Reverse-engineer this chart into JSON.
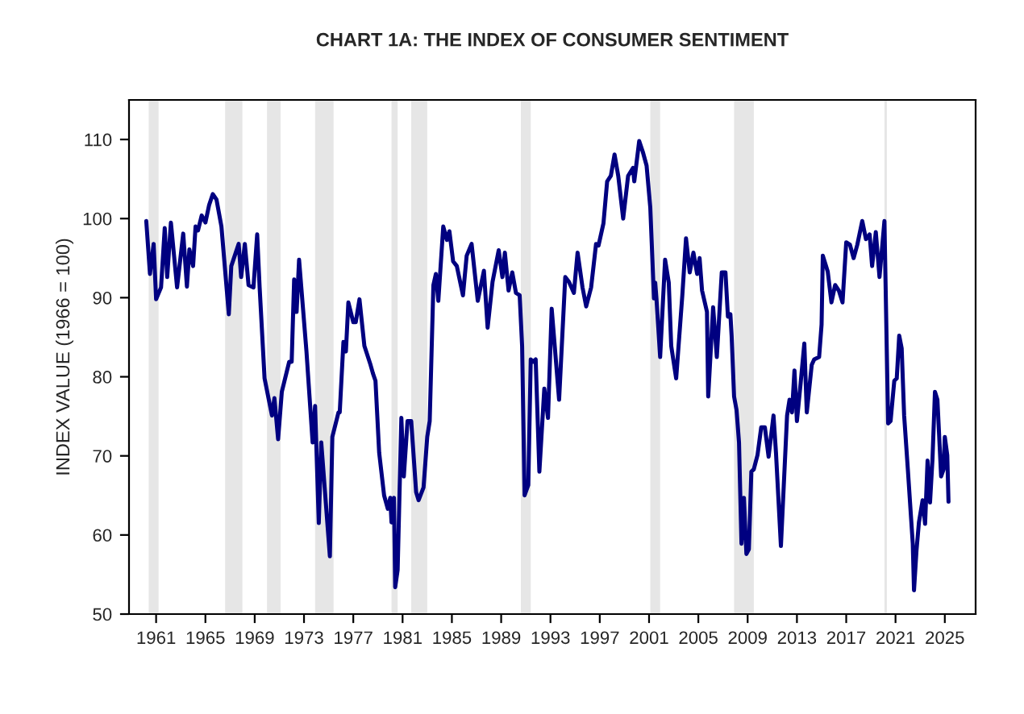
{
  "chart_data": {
    "type": "line",
    "title": "CHART 1A: THE INDEX OF CONSUMER SENTIMENT",
    "ylabel": "INDEX VALUE (1966 = 100)",
    "xlim": [
      1958.8,
      2027.5
    ],
    "xticks": [
      1961,
      1965,
      1969,
      1973,
      1977,
      1981,
      1985,
      1989,
      1993,
      1997,
      2001,
      2005,
      2009,
      2013,
      2017,
      2021,
      2025
    ],
    "ylim": [
      50,
      115
    ],
    "yticks": [
      50,
      60,
      70,
      80,
      90,
      100,
      110
    ],
    "grid": false,
    "marker": "none",
    "line_style": "solid",
    "bands": [
      {
        "axis": "x",
        "from": 1960.4,
        "to": 1961.2,
        "color": "#e6e6e6"
      },
      {
        "axis": "x",
        "from": 1966.6,
        "to": 1968.0,
        "color": "#e6e6e6"
      },
      {
        "axis": "x",
        "from": 1970.0,
        "to": 1971.1,
        "color": "#e6e6e6"
      },
      {
        "axis": "x",
        "from": 1973.9,
        "to": 1975.4,
        "color": "#e6e6e6"
      },
      {
        "axis": "x",
        "from": 1980.1,
        "to": 1980.6,
        "color": "#e6e6e6"
      },
      {
        "axis": "x",
        "from": 1981.7,
        "to": 1983.0,
        "color": "#e6e6e6"
      },
      {
        "axis": "x",
        "from": 1990.6,
        "to": 1991.4,
        "color": "#e6e6e6"
      },
      {
        "axis": "x",
        "from": 2001.1,
        "to": 2001.9,
        "color": "#e6e6e6"
      },
      {
        "axis": "x",
        "from": 2007.9,
        "to": 2009.5,
        "color": "#e6e6e6"
      },
      {
        "axis": "x",
        "from": 2020.1,
        "to": 2020.3,
        "color": "#e6e6e6"
      }
    ],
    "series": [
      {
        "color": "#000080",
        "x": [
          1960.2,
          1960.5,
          1960.8,
          1961.0,
          1961.4,
          1961.7,
          1961.9,
          1962.2,
          1962.7,
          1963.2,
          1963.5,
          1963.7,
          1964.0,
          1964.2,
          1964.4,
          1964.7,
          1965.0,
          1965.3,
          1965.6,
          1965.9,
          1966.3,
          1966.9,
          1967.1,
          1967.7,
          1967.9,
          1968.2,
          1968.5,
          1968.9,
          1969.2,
          1969.4,
          1969.8,
          1970.4,
          1970.6,
          1970.9,
          1971.2,
          1971.8,
          1972.0,
          1972.2,
          1972.4,
          1972.6,
          1973.2,
          1973.7,
          1973.9,
          1974.2,
          1974.4,
          1975.1,
          1975.3,
          1975.8,
          1975.9,
          1976.2,
          1976.4,
          1976.6,
          1977.0,
          1977.2,
          1977.5,
          1977.9,
          1978.4,
          1978.6,
          1978.8,
          1979.1,
          1979.5,
          1979.8,
          1980.0,
          1980.1,
          1980.3,
          1980.4,
          1980.6,
          1980.9,
          1981.1,
          1981.4,
          1981.7,
          1982.1,
          1982.3,
          1982.7,
          1983.0,
          1983.2,
          1983.5,
          1983.7,
          1983.9,
          1984.3,
          1984.6,
          1984.8,
          1985.1,
          1985.4,
          1985.9,
          1986.2,
          1986.6,
          1987.1,
          1987.6,
          1987.9,
          1988.3,
          1988.8,
          1989.1,
          1989.3,
          1989.6,
          1989.9,
          1990.2,
          1990.5,
          1990.7,
          1990.9,
          1991.2,
          1991.4,
          1991.6,
          1991.8,
          1992.1,
          1992.5,
          1992.8,
          1993.1,
          1993.7,
          1994.2,
          1994.5,
          1994.9,
          1995.2,
          1995.6,
          1995.9,
          1996.3,
          1996.7,
          1996.9,
          1997.3,
          1997.6,
          1997.9,
          1998.2,
          1998.5,
          1998.9,
          1999.3,
          1999.7,
          1999.8,
          2000.2,
          2000.5,
          2000.8,
          2001.1,
          2001.4,
          2001.5,
          2001.6,
          2001.9,
          2002.3,
          2002.6,
          2002.8,
          2003.2,
          2003.7,
          2004.0,
          2004.3,
          2004.6,
          2004.9,
          2005.1,
          2005.3,
          2005.7,
          2005.8,
          2006.2,
          2006.5,
          2006.9,
          2007.2,
          2007.4,
          2007.6,
          2007.7,
          2007.9,
          2008.1,
          2008.3,
          2008.5,
          2008.7,
          2008.9,
          2009.1,
          2009.3,
          2009.5,
          2009.8,
          2010.1,
          2010.4,
          2010.7,
          2011.1,
          2011.3,
          2011.7,
          2012.2,
          2012.4,
          2012.6,
          2012.8,
          2013.0,
          2013.3,
          2013.6,
          2013.8,
          2014.2,
          2014.4,
          2014.8,
          2015.0,
          2015.1,
          2015.5,
          2015.8,
          2016.1,
          2016.4,
          2016.7,
          2017.0,
          2017.3,
          2017.6,
          2017.9,
          2018.3,
          2018.6,
          2018.9,
          2019.1,
          2019.4,
          2019.7,
          2020.1,
          2020.4,
          2020.6,
          2020.9,
          2021.1,
          2021.3,
          2021.5,
          2021.7,
          2022.0,
          2022.4,
          2022.5,
          2022.7,
          2022.9,
          2023.2,
          2023.4,
          2023.6,
          2023.8,
          2024.0,
          2024.2,
          2024.4,
          2024.7,
          2024.9,
          2025.0,
          2025.2,
          2025.3
        ],
        "values": [
          99.7,
          93.0,
          96.8,
          89.8,
          91.3,
          98.8,
          92.6,
          99.5,
          91.3,
          98.1,
          91.4,
          96.1,
          94.0,
          99.0,
          98.5,
          100.4,
          99.5,
          101.7,
          103.1,
          102.4,
          99.0,
          87.9,
          94.0,
          96.8,
          92.6,
          96.8,
          91.6,
          91.3,
          98.0,
          91.3,
          79.8,
          75.1,
          77.3,
          72.1,
          78.1,
          81.9,
          81.9,
          92.3,
          88.2,
          94.8,
          83.2,
          71.7,
          76.3,
          61.5,
          71.7,
          57.3,
          72.4,
          75.5,
          75.5,
          84.4,
          83.2,
          89.4,
          86.9,
          86.9,
          89.8,
          83.9,
          81.5,
          80.4,
          79.5,
          70.4,
          65.0,
          63.3,
          64.7,
          61.6,
          64.7,
          53.4,
          55.6,
          74.8,
          67.4,
          74.4,
          74.4,
          65.4,
          64.4,
          66.0,
          72.4,
          74.4,
          91.6,
          93.0,
          89.6,
          99.0,
          97.3,
          98.4,
          94.6,
          94.0,
          90.3,
          95.3,
          96.8,
          89.6,
          93.4,
          86.2,
          92.0,
          96.0,
          92.6,
          95.7,
          90.9,
          93.2,
          90.6,
          90.3,
          83.9,
          65.0,
          66.3,
          82.2,
          81.9,
          82.2,
          68.0,
          78.5,
          74.8,
          88.6,
          77.1,
          92.6,
          92.0,
          90.6,
          95.7,
          91.3,
          88.9,
          91.3,
          96.8,
          96.6,
          99.4,
          104.7,
          105.4,
          108.1,
          105.4,
          100.0,
          105.4,
          106.4,
          104.7,
          109.8,
          108.4,
          106.7,
          101.4,
          89.9,
          91.9,
          89.9,
          82.5,
          94.8,
          91.9,
          83.9,
          79.8,
          90.3,
          97.5,
          93.2,
          95.7,
          93.0,
          95.0,
          90.9,
          88.2,
          77.5,
          88.8,
          82.5,
          93.2,
          93.2,
          87.6,
          87.9,
          85.2,
          77.5,
          75.8,
          71.7,
          58.9,
          64.7,
          57.6,
          58.2,
          68.0,
          68.3,
          70.1,
          73.6,
          73.6,
          69.9,
          75.1,
          70.4,
          58.6,
          75.1,
          77.1,
          75.5,
          80.8,
          74.4,
          79.2,
          84.2,
          75.5,
          81.5,
          82.2,
          82.5,
          86.6,
          95.3,
          93.3,
          89.4,
          91.6,
          90.9,
          89.4,
          97.0,
          96.7,
          95.0,
          96.7,
          99.7,
          97.4,
          98.0,
          94.0,
          98.3,
          92.6,
          99.7,
          74.1,
          74.4,
          79.5,
          79.8,
          85.2,
          83.6,
          75.1,
          68.3,
          58.9,
          53.0,
          58.0,
          61.6,
          64.4,
          61.4,
          69.4,
          64.1,
          69.6,
          78.1,
          77.1,
          67.4,
          68.3,
          72.4,
          70.1,
          64.2
        ]
      }
    ]
  }
}
